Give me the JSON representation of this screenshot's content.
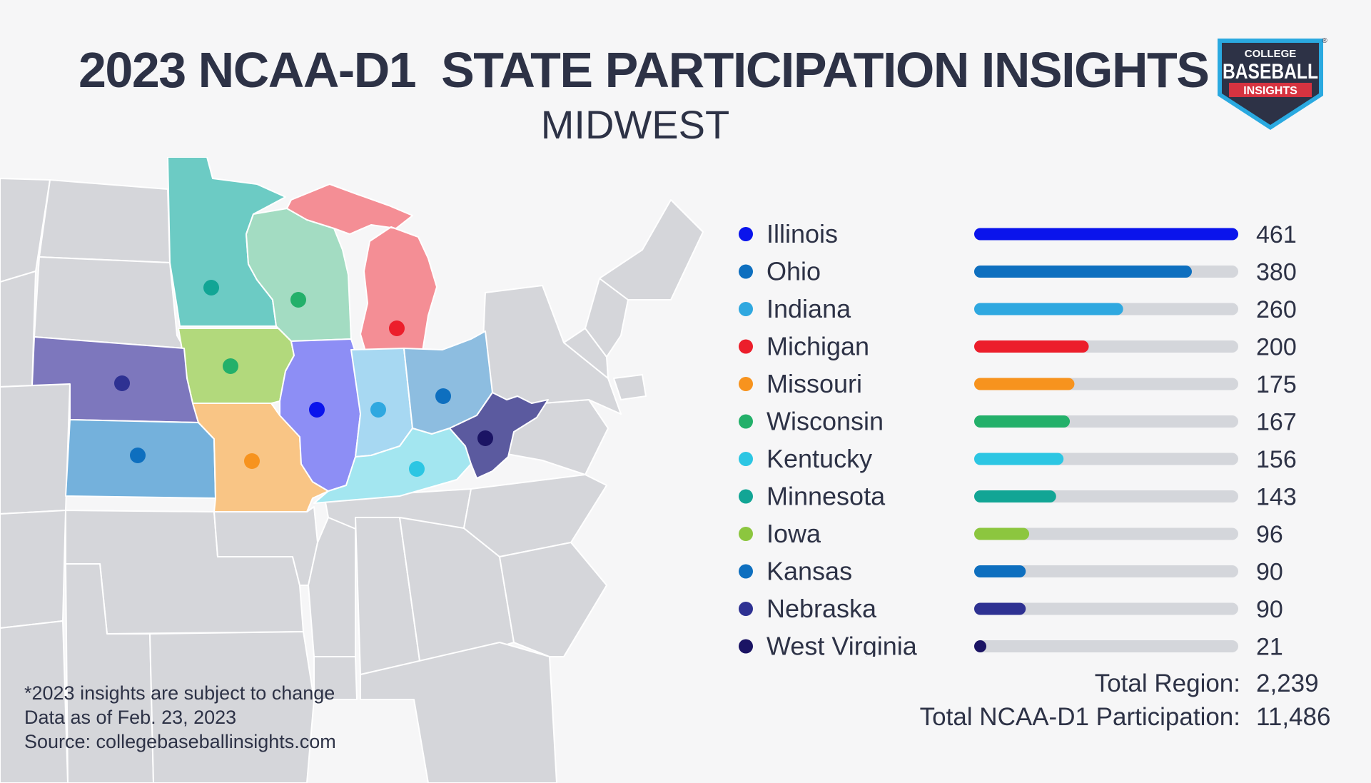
{
  "header": {
    "title": "2023 NCAA-D1  STATE PARTICIPATION INSIGHTS",
    "subtitle": "MIDWEST"
  },
  "logo": {
    "line1": "COLLEGE",
    "line2": "BASEBALL",
    "line3": "INSIGHTS",
    "registered": "®",
    "colors": {
      "shield": "#2d3246",
      "accent": "#d63340",
      "trim": "#2aa9e0"
    }
  },
  "chart_data": {
    "type": "bar",
    "orientation": "horizontal",
    "categories": [
      "Illinois",
      "Ohio",
      "Indiana",
      "Michigan",
      "Missouri",
      "Wisconsin",
      "Kentucky",
      "Minnesota",
      "Iowa",
      "Kansas",
      "Nebraska",
      "West Virginia"
    ],
    "values": [
      461,
      380,
      260,
      200,
      175,
      167,
      156,
      143,
      96,
      90,
      90,
      21
    ],
    "value_labels": [
      "461",
      "380",
      "260",
      "200",
      "175",
      "167",
      "156",
      "143",
      "96",
      "90",
      "90",
      "21"
    ],
    "colors": [
      "#0a14ec",
      "#0e6fbf",
      "#2fa8e0",
      "#ec1e2b",
      "#f7931e",
      "#23b06a",
      "#2cc6e3",
      "#12a595",
      "#8cc63f",
      "#0e6fbf",
      "#2e3192",
      "#1b1464"
    ],
    "track_color": "#d4d6db",
    "xlim": [
      0,
      461
    ],
    "legend": "left"
  },
  "totals": {
    "region_label": "Total Region:",
    "region_value": "2,239",
    "d1_label": "Total NCAA-D1 Participation:",
    "d1_value": "11,486"
  },
  "notes": {
    "line1": "*2023 insights are subject to change",
    "line2": "Data as of Feb. 23, 2023",
    "line3": "Source: collegebaseballinsights.com"
  },
  "map": {
    "base_color": "#d5d6da",
    "border_color": "#ffffff",
    "highlighted_states": [
      {
        "name": "minnesota",
        "color": "#6ccbc4",
        "dot": "#12a595"
      },
      {
        "name": "wisconsin",
        "color": "#a3dcc2",
        "dot": "#23b06a"
      },
      {
        "name": "michigan",
        "color": "#f48e95",
        "dot": "#ec1e2b"
      },
      {
        "name": "iowa",
        "color": "#b2d97c",
        "dot": "#23b06a"
      },
      {
        "name": "nebraska",
        "color": "#7d77bd",
        "dot": "#2e3192"
      },
      {
        "name": "kansas",
        "color": "#74b1dc",
        "dot": "#0e6fbf"
      },
      {
        "name": "missouri",
        "color": "#f9c585",
        "dot": "#f7931e"
      },
      {
        "name": "illinois",
        "color": "#8d8ef5",
        "dot": "#0a14ec"
      },
      {
        "name": "indiana",
        "color": "#a7d8f2",
        "dot": "#2fa8e0"
      },
      {
        "name": "ohio",
        "color": "#8dbde0",
        "dot": "#0e6fbf"
      },
      {
        "name": "kentucky",
        "color": "#a3e6f0",
        "dot": "#2cc6e3"
      },
      {
        "name": "west-virginia",
        "color": "#5b5a9f",
        "dot": "#1b1464"
      }
    ]
  }
}
